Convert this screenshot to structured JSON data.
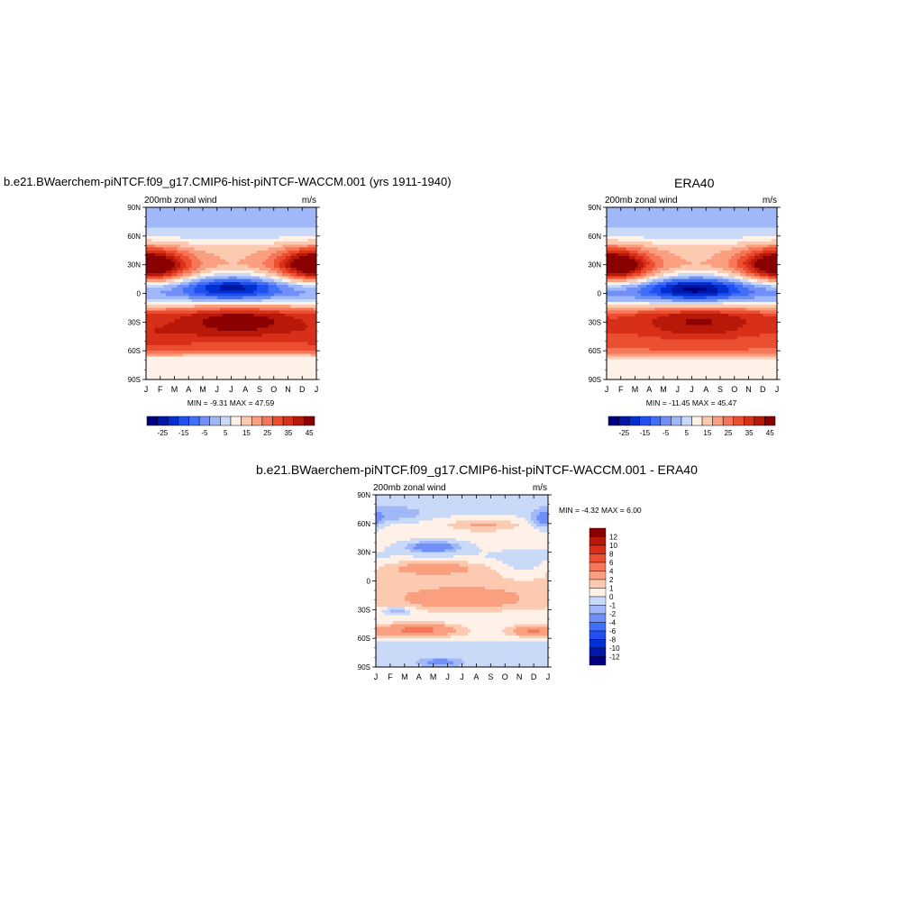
{
  "figure": {
    "left_title": "b.e21.BWaerchem-piNTCF.f09_g17.CMIP6-hist-piNTCF-WACCM.001 (yrs 1911-1940)",
    "right_title": "ERA40",
    "bottom_title": "b.e21.BWaerchem-piNTCF.f09_g17.CMIP6-hist-piNTCF-WACCM.001 - ERA40"
  },
  "chart_data": [
    {
      "type": "heatmap",
      "title": "b.e21.BWaerchem-piNTCF.f09_g17.CMIP6-hist-piNTCF-WACCM.001 (yrs 1911-1940)",
      "left_string": "200mb zonal wind",
      "right_string": "m/s",
      "x_ticks": [
        "J",
        "F",
        "M",
        "A",
        "M",
        "J",
        "J",
        "A",
        "S",
        "O",
        "N",
        "D",
        "J"
      ],
      "y_ticks": [
        "90N",
        "60N",
        "30N",
        "0",
        "30S",
        "60S",
        "90S"
      ],
      "ylim": [
        -90,
        90
      ],
      "min_max_text": "MIN =  -9.31 MAX =  47.59",
      "levels": [
        -30,
        -25,
        -20,
        -15,
        -10,
        -5,
        0,
        5,
        10,
        15,
        20,
        25,
        30,
        35,
        40,
        45
      ],
      "colorbar_labels": [
        "-25",
        "-15",
        "-5",
        "5",
        "15",
        "25",
        "35",
        "45"
      ],
      "colors": [
        "#000080",
        "#0018a8",
        "#0030d0",
        "#2050f0",
        "#4070f8",
        "#7090f8",
        "#a0b8f8",
        "#c8daf8",
        "#fff0e8",
        "#fccab0",
        "#fa9f80",
        "#f57658",
        "#ec4f30",
        "#d83018",
        "#b81808",
        "#8a0000"
      ],
      "features": [
        {
          "t": 0.7,
          "lat": 28,
          "w": 1.8,
          "h": 12,
          "amp": 24
        },
        {
          "t": 11.5,
          "lat": 31,
          "w": 1.8,
          "h": 12,
          "amp": 21
        },
        {
          "t": 6.5,
          "lat": -29,
          "w": 3.5,
          "h": 13,
          "amp": 20
        },
        {
          "t": 6,
          "lat": 6,
          "w": 2.2,
          "h": 9,
          "amp": -22
        },
        {
          "t": 1,
          "lat": -47,
          "w": 2,
          "h": 9,
          "amp": 5
        }
      ],
      "background": [
        [
          -90,
          10
        ],
        [
          -70,
          10
        ],
        [
          -58,
          30
        ],
        [
          -40,
          30
        ],
        [
          -22,
          28
        ],
        [
          -8,
          5
        ],
        [
          0,
          -2
        ],
        [
          8,
          0
        ],
        [
          20,
          15
        ],
        [
          30,
          20
        ],
        [
          45,
          18
        ],
        [
          60,
          8
        ],
        [
          75,
          3
        ],
        [
          90,
          5
        ]
      ]
    },
    {
      "type": "heatmap",
      "title": "ERA40",
      "left_string": "200mb zonal wind",
      "right_string": "m/s",
      "x_ticks": [
        "J",
        "F",
        "M",
        "A",
        "M",
        "J",
        "J",
        "A",
        "S",
        "O",
        "N",
        "D",
        "J"
      ],
      "y_ticks": [
        "90N",
        "60N",
        "30N",
        "0",
        "30S",
        "60S",
        "90S"
      ],
      "ylim": [
        -90,
        90
      ],
      "min_max_text": "MIN = -11.45 MAX =  45.47",
      "levels": [
        -30,
        -25,
        -20,
        -15,
        -10,
        -5,
        0,
        5,
        10,
        15,
        20,
        25,
        30,
        35,
        40,
        45
      ],
      "colorbar_labels": [
        "-25",
        "-15",
        "-5",
        "5",
        "15",
        "25",
        "35",
        "45"
      ],
      "colors": [
        "#000080",
        "#0018a8",
        "#0030d0",
        "#2050f0",
        "#4070f8",
        "#7090f8",
        "#a0b8f8",
        "#c8daf8",
        "#fff0e8",
        "#fccab0",
        "#fa9f80",
        "#f57658",
        "#ec4f30",
        "#d83018",
        "#b81808",
        "#8a0000"
      ],
      "features": [
        {
          "t": 0.8,
          "lat": 28,
          "w": 1.8,
          "h": 12,
          "amp": 22
        },
        {
          "t": 11.8,
          "lat": 31,
          "w": 1.8,
          "h": 12,
          "amp": 22
        },
        {
          "t": 6.5,
          "lat": -28,
          "w": 3.5,
          "h": 13,
          "amp": 18
        },
        {
          "t": 6.2,
          "lat": 5,
          "w": 2.2,
          "h": 9,
          "amp": -25
        }
      ],
      "background": [
        [
          -90,
          10
        ],
        [
          -70,
          12
        ],
        [
          -58,
          30
        ],
        [
          -40,
          30
        ],
        [
          -22,
          26
        ],
        [
          -8,
          3
        ],
        [
          0,
          -4
        ],
        [
          8,
          -1
        ],
        [
          20,
          15
        ],
        [
          30,
          20
        ],
        [
          45,
          18
        ],
        [
          60,
          8
        ],
        [
          75,
          3
        ],
        [
          90,
          5
        ]
      ]
    },
    {
      "type": "heatmap",
      "title": "b.e21.BWaerchem-piNTCF.f09_g17.CMIP6-hist-piNTCF-WACCM.001 - ERA40",
      "left_string": "200mb zonal wind",
      "right_string": "m/s",
      "x_ticks": [
        "J",
        "F",
        "M",
        "A",
        "M",
        "J",
        "J",
        "A",
        "S",
        "O",
        "N",
        "D",
        "J"
      ],
      "y_ticks": [
        "90N",
        "60N",
        "30N",
        "0",
        "30S",
        "60S",
        "90S"
      ],
      "ylim": [
        -90,
        90
      ],
      "min_max_text": "MIN =  -4.32 MAX =   6.00",
      "levels": [
        -14,
        -12,
        -10,
        -8,
        -6,
        -4,
        -2,
        -1,
        0,
        1,
        2,
        4,
        6,
        8,
        10,
        12
      ],
      "colorbar_labels": [
        "12",
        "10",
        "8",
        "6",
        "4",
        "2",
        "1",
        "0",
        "-1",
        "-2",
        "-4",
        "-6",
        "-8",
        "-10",
        "-12"
      ],
      "colors": [
        "#000080",
        "#0018a8",
        "#0030d0",
        "#2050f0",
        "#4070f8",
        "#7090f8",
        "#a0b8f8",
        "#c8daf8",
        "#fff0e8",
        "#fccab0",
        "#fa9f80",
        "#f57658",
        "#ec4f30",
        "#d83018",
        "#b81808",
        "#8a0000"
      ],
      "features": [
        {
          "t": 3,
          "lat": -51,
          "w": 1.8,
          "h": 5,
          "amp": 4.5
        },
        {
          "t": 10.8,
          "lat": -52,
          "w": 1,
          "h": 4,
          "amp": 3.5
        },
        {
          "t": 4,
          "lat": 35,
          "w": 1.2,
          "h": 4,
          "amp": -4
        },
        {
          "t": 6,
          "lat": -18,
          "w": 2.8,
          "h": 8,
          "amp": 2.2
        },
        {
          "t": 4,
          "lat": 14,
          "w": 2,
          "h": 5,
          "amp": 2.2
        },
        {
          "t": 7.5,
          "lat": 58,
          "w": 1.5,
          "h": 4,
          "amp": 1.8
        },
        {
          "t": 1.5,
          "lat": -31,
          "w": 0.7,
          "h": 3,
          "amp": -2.5
        },
        {
          "t": 4.5,
          "lat": -85,
          "w": 1,
          "h": 3,
          "amp": -2.5
        },
        {
          "t": 11.7,
          "lat": 64,
          "w": 0.6,
          "h": 6,
          "amp": -3
        },
        {
          "t": 1.5,
          "lat": 68,
          "w": 1.5,
          "h": 6,
          "amp": -1.5
        },
        {
          "t": 10.3,
          "lat": 15,
          "w": 1.2,
          "h": 8,
          "amp": -1.2
        }
      ],
      "background": [
        [
          -90,
          -0.5
        ],
        [
          -70,
          -0.5
        ],
        [
          -55,
          0.5
        ],
        [
          -40,
          0
        ],
        [
          -25,
          1.2
        ],
        [
          -5,
          1.2
        ],
        [
          10,
          1.2
        ],
        [
          25,
          0
        ],
        [
          45,
          0.2
        ],
        [
          60,
          0.6
        ],
        [
          75,
          -0.5
        ],
        [
          90,
          -0.5
        ]
      ]
    }
  ]
}
